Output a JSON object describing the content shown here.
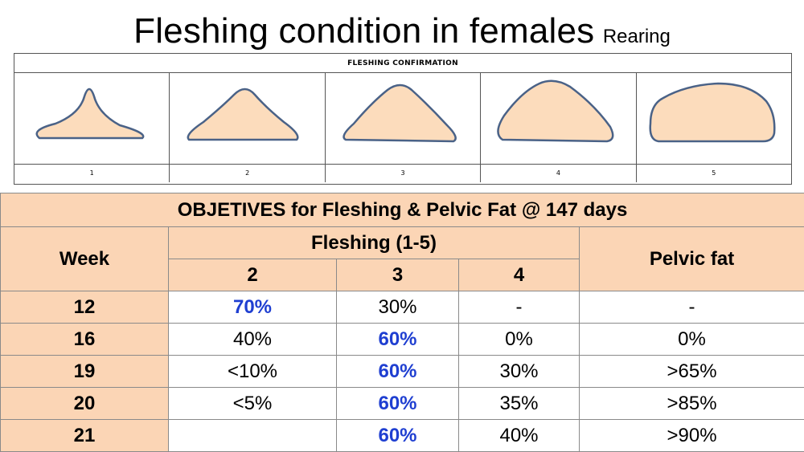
{
  "title": {
    "main": "Fleshing condition in females",
    "sub": "Rearing"
  },
  "confirmation": {
    "heading": "FLESHING CONFIRMATION",
    "fill_color": "#fcdcbc",
    "stroke_color": "#4a6287",
    "scores": [
      "1",
      "2",
      "3",
      "4",
      "5"
    ]
  },
  "table": {
    "title": "OBJETIVES  for Fleshing & Pelvic Fat @ 147 days",
    "col_week": "Week",
    "col_fleshing": "Fleshing (1-5)",
    "col_pelvic": "Pelvic fat",
    "fleshing_sub": [
      "2",
      "3",
      "4"
    ],
    "highlight_color": "#1f3fd1",
    "header_bg": "#fbd5b5",
    "rows": [
      {
        "week": "12",
        "c2": "70%",
        "c3": "30%",
        "c4": "-",
        "pelvic": "-",
        "highlight": "c2"
      },
      {
        "week": "16",
        "c2": "40%",
        "c3": "60%",
        "c4": "0%",
        "pelvic": "0%",
        "highlight": "c3"
      },
      {
        "week": "19",
        "c2": "<10%",
        "c3": "60%",
        "c4": "30%",
        "pelvic": ">65%",
        "highlight": "c3"
      },
      {
        "week": "20",
        "c2": "<5%",
        "c3": "60%",
        "c4": "35%",
        "pelvic": ">85%",
        "highlight": "c3"
      },
      {
        "week": "21",
        "c2": "",
        "c3": "60%",
        "c4": "40%",
        "pelvic": ">90%",
        "highlight": "c3"
      }
    ]
  }
}
